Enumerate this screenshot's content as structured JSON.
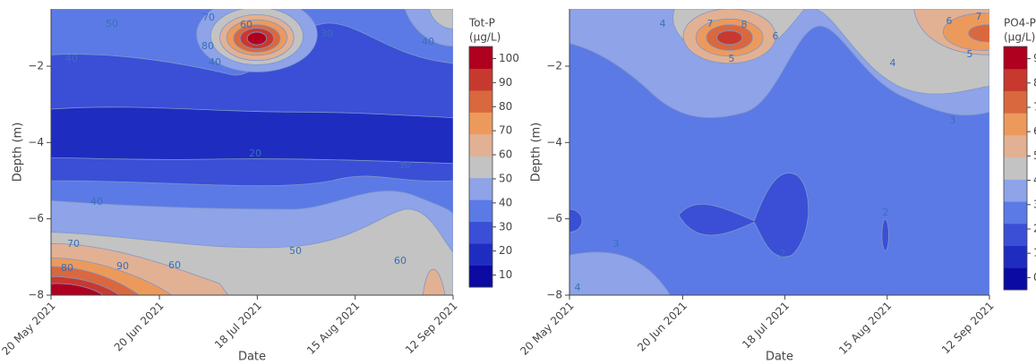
{
  "chart_data": [
    {
      "type": "contour",
      "xlabel": "Date",
      "ylabel": "Depth (m)",
      "xlim": [
        "2021-05-20",
        "2021-09-12"
      ],
      "xticks": [
        {
          "value": "2021-05-20",
          "label": "20 May 2021"
        },
        {
          "value": "2021-06-20",
          "label": "20 Jun 2021"
        },
        {
          "value": "2021-07-18",
          "label": "18 Jul 2021"
        },
        {
          "value": "2021-08-15",
          "label": "15 Aug 2021"
        },
        {
          "value": "2021-09-12",
          "label": "12 Sep 2021"
        }
      ],
      "ylim": [
        -8,
        -0.5
      ],
      "yticks": [
        {
          "value": -2,
          "label": "−2"
        },
        {
          "value": -4,
          "label": "−4"
        },
        {
          "value": -6,
          "label": "−6"
        },
        {
          "value": -8,
          "label": "−8"
        }
      ],
      "colorbar_title": [
        "Tot-P",
        "(μg/L)"
      ],
      "clim": [
        5,
        105
      ],
      "cticks": [
        10,
        20,
        30,
        40,
        50,
        60,
        70,
        80,
        90,
        100
      ],
      "colorscale": [
        "#0b0aa2",
        "#1f2cc0",
        "#3a4fd6",
        "#5b7ae6",
        "#8ea3e8",
        "#c3c3c3",
        "#e2b193",
        "#ec9a5c",
        "#d9683f",
        "#c7392f",
        "#b0001f"
      ],
      "contour_labels": [
        50,
        70,
        60,
        80,
        40,
        40,
        30,
        40,
        20,
        30,
        40,
        70,
        80,
        90,
        60,
        50,
        60
      ]
    },
    {
      "type": "contour",
      "xlabel": "Date",
      "ylabel": "Depth (m)",
      "xlim": [
        "2021-05-20",
        "2021-09-12"
      ],
      "xticks": [
        {
          "value": "2021-05-20",
          "label": "20 May 2021"
        },
        {
          "value": "2021-06-20",
          "label": "20 Jun 2021"
        },
        {
          "value": "2021-07-18",
          "label": "18 Jul 2021"
        },
        {
          "value": "2021-08-15",
          "label": "15 Aug 2021"
        },
        {
          "value": "2021-09-12",
          "label": "12 Sep 2021"
        }
      ],
      "ylim": [
        -8,
        -0.5
      ],
      "yticks": [
        {
          "value": -2,
          "label": "−2"
        },
        {
          "value": -4,
          "label": "−4"
        },
        {
          "value": -6,
          "label": "−6"
        },
        {
          "value": -8,
          "label": "−8"
        }
      ],
      "colorbar_title": [
        "PO4-P",
        "(μg/L)"
      ],
      "clim": [
        -0.5,
        9.5
      ],
      "cticks": [
        0,
        1,
        2,
        3,
        4,
        5,
        6,
        7,
        8,
        9
      ],
      "colorscale": [
        "#0b0aa2",
        "#1f2cc0",
        "#3a4fd6",
        "#5b7ae6",
        "#8ea3e8",
        "#c3c3c3",
        "#e2b193",
        "#ec9a5c",
        "#d9683f",
        "#c7392f",
        "#b0001f"
      ],
      "contour_labels": [
        4,
        7,
        8,
        6,
        5,
        6,
        7,
        5,
        4,
        3,
        3,
        2,
        2,
        4
      ]
    }
  ]
}
